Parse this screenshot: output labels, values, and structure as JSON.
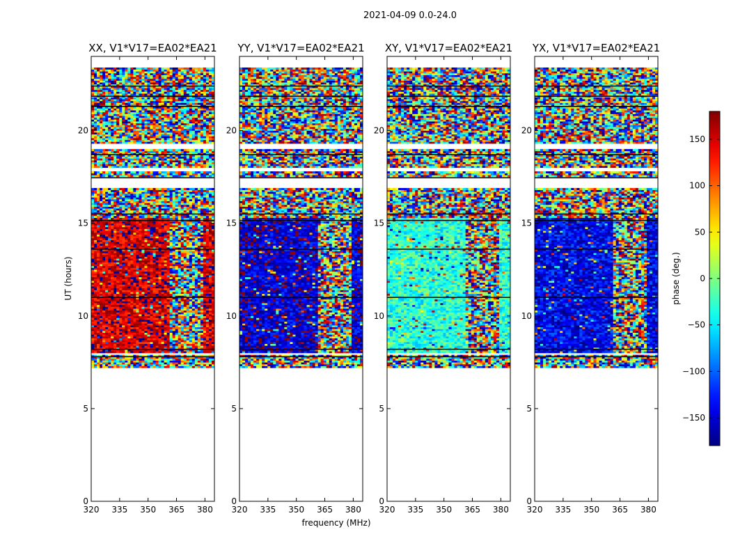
{
  "chart_data": {
    "type": "heatmap",
    "suptitle": "2021-04-09 0.0-24.0",
    "xlabel": "frequency (MHz)",
    "ylabel": "UT (hours)",
    "xlim": [
      320,
      385
    ],
    "ylim": [
      0,
      24
    ],
    "xticks": [
      "320",
      "335",
      "350",
      "365",
      "380"
    ],
    "yticks": [
      "0",
      "5",
      "10",
      "15",
      "20"
    ],
    "data_time_range_hours": [
      7.2,
      23.4
    ],
    "colormap": "jet",
    "colorbar": {
      "label": "phase (deg.)",
      "range": [
        -180,
        180
      ],
      "ticks": [
        "150",
        "100",
        "50",
        "0",
        "−50",
        "−100",
        "−150"
      ]
    },
    "panels": [
      {
        "title": "XX, V1*V17=EA02*EA21",
        "dominant_phase_deg": 150,
        "band_split_mhz": 360
      },
      {
        "title": "YY, V1*V17=EA02*EA21",
        "dominant_phase_deg": -150,
        "band_split_mhz": 360
      },
      {
        "title": "XY, V1*V17=EA02*EA21",
        "dominant_phase_deg": -30,
        "band_split_mhz": 360
      },
      {
        "title": "YX, V1*V17=EA02*EA21",
        "dominant_phase_deg": -140,
        "band_split_mhz": 360
      }
    ]
  }
}
